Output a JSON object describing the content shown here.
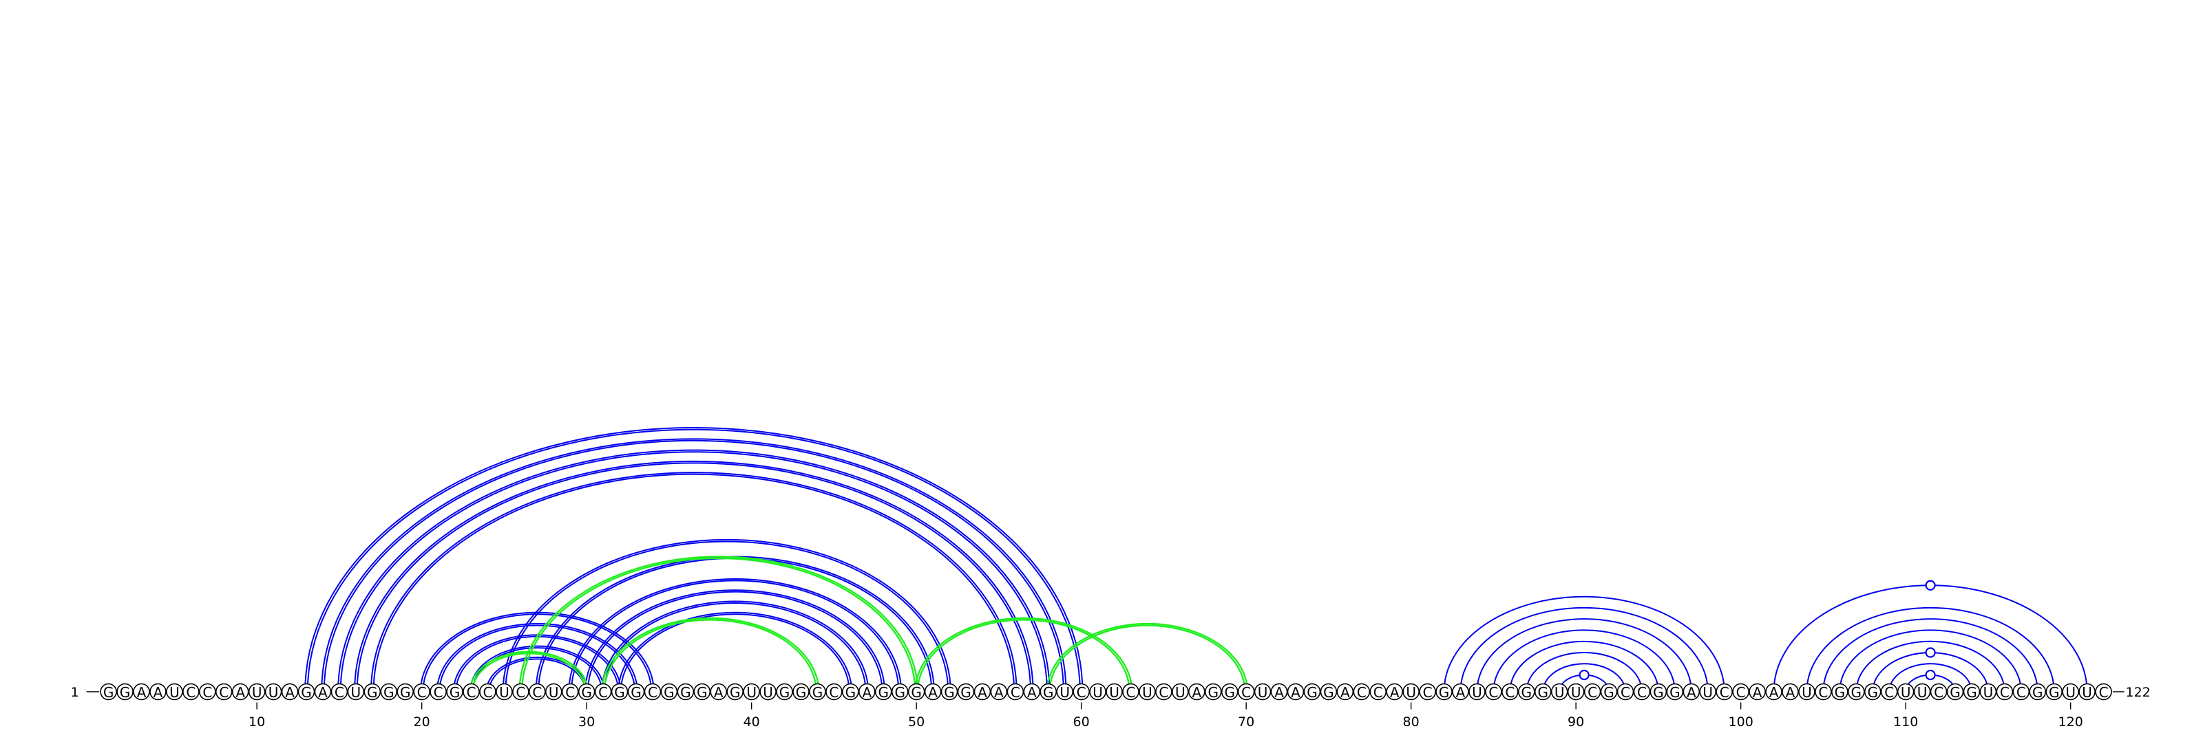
{
  "chart_data": {
    "type": "arc-diagram",
    "sequence": "GGAAUCCCAUUAGACUGGGCCGCCUCCUCGCGGCGGGAGUUGGGCGAGGGAGGAACAGUCUUCUCUAGGCUAAGGACCAUCGAUCCGGUUCGCCGGAUCCAAAUCGGGCUUCGGUCCGGUUC",
    "length": 122,
    "start_label": "1",
    "end_label": "122",
    "tick_labels": [
      "10",
      "20",
      "30",
      "40",
      "50",
      "60",
      "70",
      "80",
      "90",
      "100",
      "110",
      "120"
    ],
    "tick_positions": [
      10,
      20,
      30,
      40,
      50,
      60,
      70,
      80,
      90,
      100,
      110,
      120
    ],
    "colors": {
      "blue": "#0000ee",
      "green": "#22ee22",
      "outline": "#000000"
    },
    "arcs": [
      {
        "i": 13,
        "j": 60,
        "color": "blue",
        "style": "double"
      },
      {
        "i": 14,
        "j": 59,
        "color": "blue",
        "style": "double"
      },
      {
        "i": 15,
        "j": 58,
        "color": "blue",
        "style": "double"
      },
      {
        "i": 16,
        "j": 57,
        "color": "blue",
        "style": "double"
      },
      {
        "i": 17,
        "j": 56,
        "color": "blue",
        "style": "double"
      },
      {
        "i": 20,
        "j": 34,
        "color": "blue",
        "style": "double"
      },
      {
        "i": 21,
        "j": 33,
        "color": "blue",
        "style": "double"
      },
      {
        "i": 22,
        "j": 32,
        "color": "blue",
        "style": "double"
      },
      {
        "i": 23,
        "j": 31,
        "color": "blue",
        "style": "double"
      },
      {
        "i": 24,
        "j": 30,
        "color": "blue",
        "style": "double"
      },
      {
        "i": 25,
        "j": 52,
        "color": "blue",
        "style": "double"
      },
      {
        "i": 27,
        "j": 51,
        "color": "blue",
        "style": "double"
      },
      {
        "i": 29,
        "j": 49,
        "color": "blue",
        "style": "double"
      },
      {
        "i": 30,
        "j": 48,
        "color": "blue",
        "style": "double"
      },
      {
        "i": 31,
        "j": 47,
        "color": "blue",
        "style": "double"
      },
      {
        "i": 32,
        "j": 46,
        "color": "blue",
        "style": "double"
      },
      {
        "i": 23,
        "j": 30,
        "color": "green",
        "style": "double"
      },
      {
        "i": 26,
        "j": 50,
        "color": "green",
        "style": "double"
      },
      {
        "i": 31,
        "j": 44,
        "color": "green",
        "style": "double"
      },
      {
        "i": 50,
        "j": 63,
        "color": "green",
        "style": "double"
      },
      {
        "i": 58,
        "j": 70,
        "color": "green",
        "style": "double"
      },
      {
        "i": 82,
        "j": 99,
        "color": "blue",
        "style": "single"
      },
      {
        "i": 83,
        "j": 98,
        "color": "blue",
        "style": "single"
      },
      {
        "i": 84,
        "j": 97,
        "color": "blue",
        "style": "single"
      },
      {
        "i": 85,
        "j": 96,
        "color": "blue",
        "style": "single"
      },
      {
        "i": 86,
        "j": 95,
        "color": "blue",
        "style": "single"
      },
      {
        "i": 87,
        "j": 94,
        "color": "blue",
        "style": "single"
      },
      {
        "i": 88,
        "j": 93,
        "color": "blue",
        "style": "single"
      },
      {
        "i": 89,
        "j": 92,
        "color": "blue",
        "style": "single",
        "marker": true
      },
      {
        "i": 102,
        "j": 121,
        "color": "blue",
        "style": "single",
        "marker": true
      },
      {
        "i": 104,
        "j": 119,
        "color": "blue",
        "style": "single"
      },
      {
        "i": 105,
        "j": 118,
        "color": "blue",
        "style": "single"
      },
      {
        "i": 106,
        "j": 117,
        "color": "blue",
        "style": "single"
      },
      {
        "i": 107,
        "j": 116,
        "color": "blue",
        "style": "single"
      },
      {
        "i": 108,
        "j": 115,
        "color": "blue",
        "style": "single",
        "marker": true
      },
      {
        "i": 109,
        "j": 114,
        "color": "blue",
        "style": "single"
      },
      {
        "i": 110,
        "j": 113,
        "color": "blue",
        "style": "single",
        "marker": true
      }
    ]
  }
}
